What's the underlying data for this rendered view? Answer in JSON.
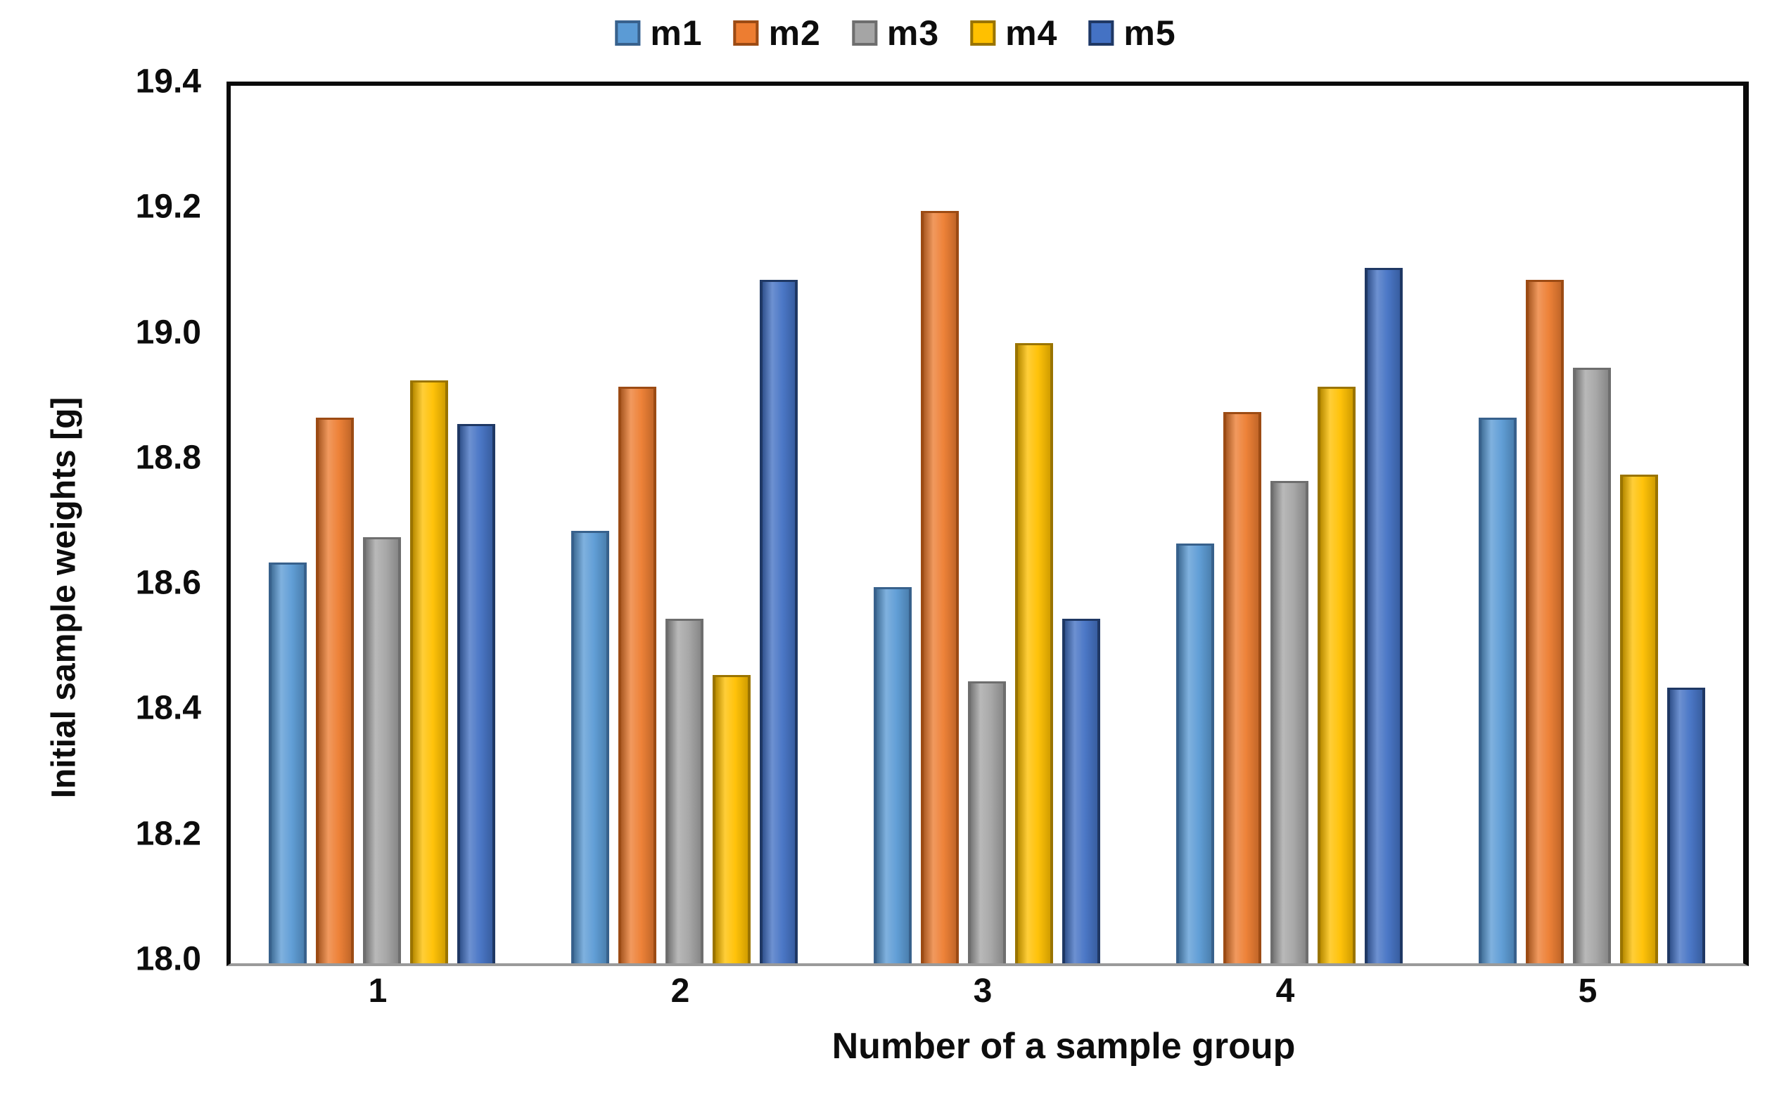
{
  "chart_data": {
    "type": "bar",
    "title": "",
    "xlabel": "Number of a sample group",
    "ylabel": "Initial sample weights [g]",
    "categories": [
      "1",
      "2",
      "3",
      "4",
      "5"
    ],
    "series": [
      {
        "name": "m1",
        "color": "#5B9BD5",
        "border": "#38618C",
        "values": [
          18.64,
          18.69,
          18.6,
          18.67,
          18.87
        ]
      },
      {
        "name": "m2",
        "color": "#ED7D31",
        "border": "#9C4B14",
        "values": [
          18.87,
          18.92,
          19.2,
          18.88,
          19.09
        ]
      },
      {
        "name": "m3",
        "color": "#A5A5A5",
        "border": "#6E6E6E",
        "values": [
          18.68,
          18.55,
          18.45,
          18.77,
          18.95
        ]
      },
      {
        "name": "m4",
        "color": "#FFC000",
        "border": "#9A7400",
        "values": [
          18.93,
          18.46,
          18.99,
          18.92,
          18.78
        ]
      },
      {
        "name": "m5",
        "color": "#4472C4",
        "border": "#1F3864",
        "values": [
          18.86,
          19.09,
          18.55,
          19.11,
          18.44
        ]
      }
    ],
    "ylim": [
      18.0,
      19.4
    ],
    "ytick_step": 0.2,
    "yticks": [
      "19.4",
      "19.2",
      "19.0",
      "18.8",
      "18.6",
      "18.4",
      "18.2",
      "18.0"
    ],
    "legend_position": "top-center",
    "grid": false,
    "frame_color": "#0a0a0a",
    "baseline_color": "#9a9a9a",
    "background_color": "#ffffff"
  }
}
